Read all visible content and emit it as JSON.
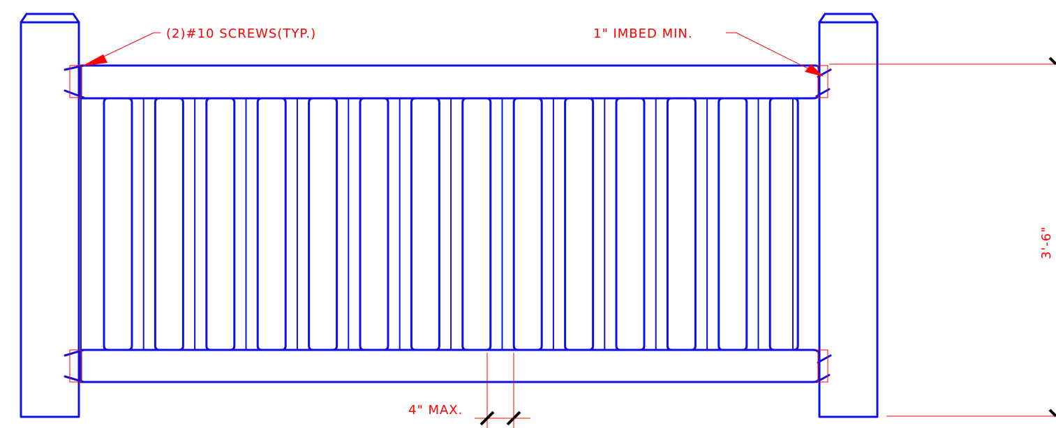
{
  "annotations": {
    "screws": "(2)#10 SCREWS(TYP.)",
    "imbed": "1\" IMBED MIN.",
    "spacing": "4\" MAX.",
    "height": "3'-6\""
  },
  "colors": {
    "linework": "#1010e6",
    "annotation": "#ff0000"
  },
  "balusters": {
    "count": 14
  }
}
